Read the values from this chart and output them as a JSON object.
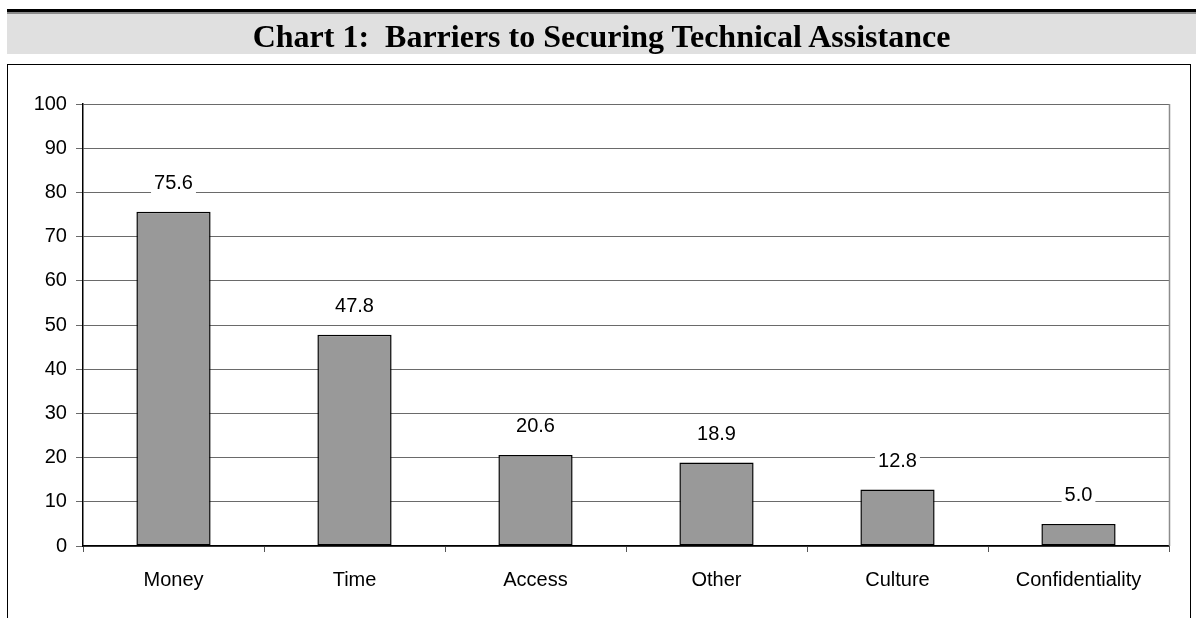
{
  "chart_data": {
    "type": "bar",
    "title": "Chart 1:  Barriers to Securing Technical Assistance",
    "categories": [
      "Money",
      "Time",
      "Access",
      "Other",
      "Culture",
      "Confidentiality"
    ],
    "values": [
      75.6,
      47.8,
      20.6,
      18.9,
      12.8,
      5.0
    ],
    "value_labels": [
      "75.6",
      "47.8",
      "20.6",
      "18.9",
      "12.8",
      "5.0"
    ],
    "color": "#999999",
    "ylim": [
      0,
      100
    ],
    "yticks": [
      0,
      10,
      20,
      30,
      40,
      50,
      60,
      70,
      80,
      90,
      100
    ],
    "grid": "y"
  }
}
